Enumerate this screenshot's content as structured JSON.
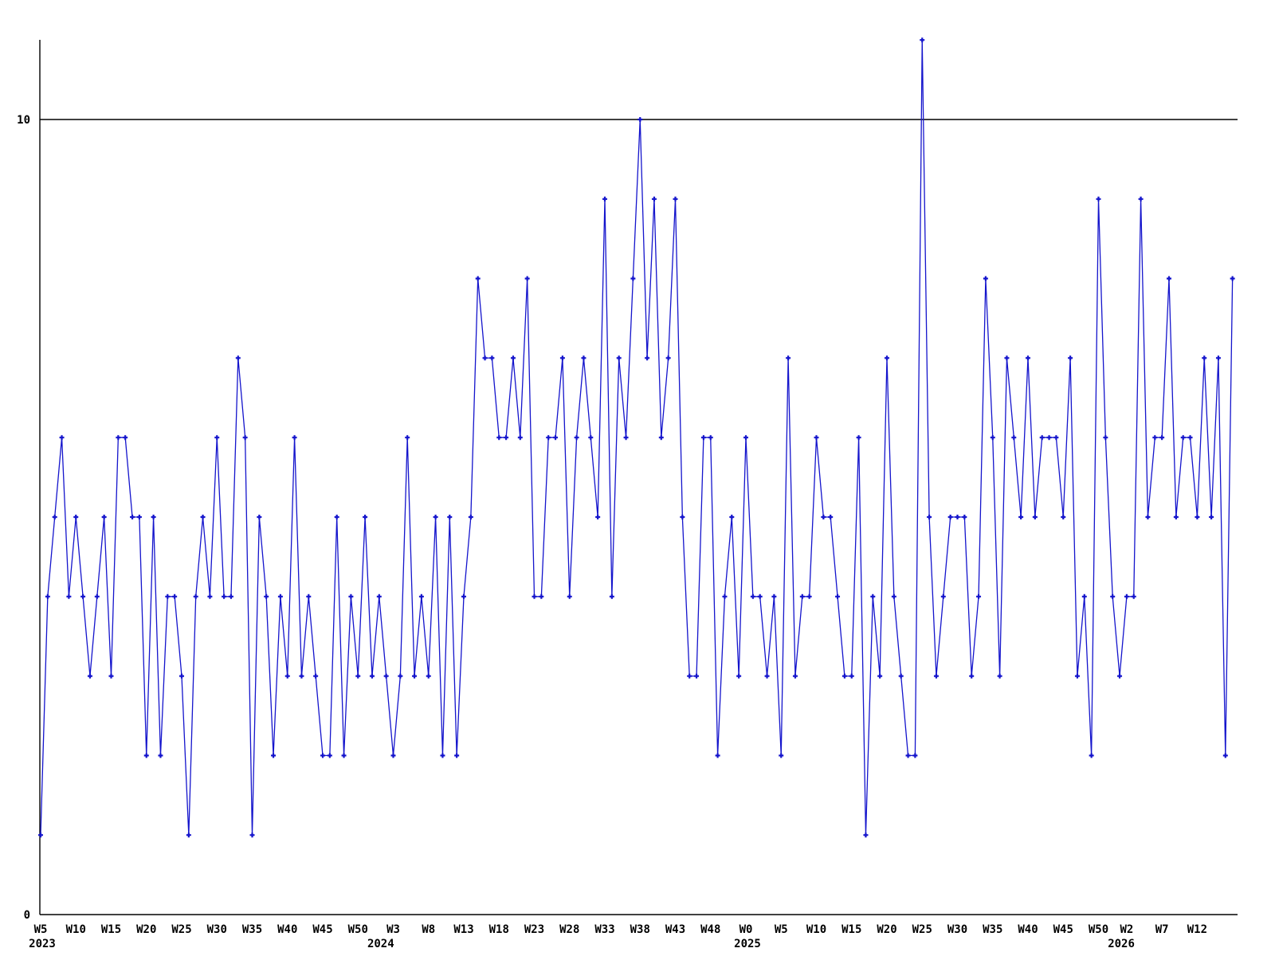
{
  "chart_data": {
    "type": "line",
    "title": "",
    "xlabel": "",
    "ylabel": "",
    "legend": "none",
    "grid": "none",
    "line_color": "#1414cc",
    "axis_color": "#000000",
    "background_color": "#ffffff",
    "marker": "plus",
    "ylim": [
      0,
      11.5
    ],
    "hline_value": 10,
    "y_ticks": [
      {
        "label": "0",
        "value": 0
      },
      {
        "label": "10",
        "value": 10
      }
    ],
    "x_start": {
      "year": "2023",
      "week": "W5"
    },
    "x_end": {
      "year": "2026",
      "week": "W17"
    },
    "values": [
      1,
      4,
      5,
      6,
      4,
      5,
      4,
      3,
      4,
      5,
      3,
      6,
      6,
      5,
      5,
      2,
      5,
      2,
      4,
      4,
      3,
      1,
      4,
      5,
      4,
      6,
      4,
      4,
      7,
      6,
      1,
      5,
      4,
      2,
      4,
      3,
      6,
      3,
      4,
      3,
      2,
      2,
      5,
      2,
      4,
      3,
      5,
      3,
      4,
      3,
      2,
      3,
      6,
      3,
      4,
      3,
      5,
      2,
      5,
      2,
      4,
      5,
      8,
      7,
      7,
      6,
      6,
      7,
      6,
      8,
      4,
      4,
      6,
      6,
      7,
      4,
      6,
      7,
      6,
      5,
      9,
      4,
      7,
      6,
      8,
      10,
      7,
      9,
      6,
      7,
      9,
      5,
      3,
      3,
      6,
      6,
      2,
      4,
      5,
      3,
      6,
      4,
      4,
      3,
      4,
      2,
      7,
      3,
      4,
      4,
      6,
      5,
      5,
      4,
      3,
      3,
      6,
      1,
      4,
      3,
      7,
      4,
      3,
      2,
      2,
      11,
      5,
      3,
      4,
      5,
      5,
      5,
      3,
      4,
      8,
      6,
      3,
      7,
      6,
      5,
      7,
      5,
      6,
      6,
      6,
      5,
      7,
      3,
      4,
      2,
      9,
      6,
      4,
      3,
      4,
      4,
      9,
      5,
      6,
      6,
      8,
      5,
      6,
      6,
      5,
      7,
      5,
      7,
      2,
      8
    ],
    "x_ticks": [
      {
        "label": "W5",
        "index": 0
      },
      {
        "label": "W10",
        "index": 5
      },
      {
        "label": "W15",
        "index": 10
      },
      {
        "label": "W20",
        "index": 15
      },
      {
        "label": "W25",
        "index": 20
      },
      {
        "label": "W30",
        "index": 25
      },
      {
        "label": "W35",
        "index": 30
      },
      {
        "label": "W40",
        "index": 35
      },
      {
        "label": "W45",
        "index": 40
      },
      {
        "label": "W50",
        "index": 45
      },
      {
        "label": "W3",
        "index": 50
      },
      {
        "label": "W8",
        "index": 55
      },
      {
        "label": "W13",
        "index": 60
      },
      {
        "label": "W18",
        "index": 65
      },
      {
        "label": "W23",
        "index": 70
      },
      {
        "label": "W28",
        "index": 75
      },
      {
        "label": "W33",
        "index": 80
      },
      {
        "label": "W38",
        "index": 85
      },
      {
        "label": "W43",
        "index": 90
      },
      {
        "label": "W48",
        "index": 95
      },
      {
        "label": "W0",
        "index": 100
      },
      {
        "label": "W5",
        "index": 105
      },
      {
        "label": "W10",
        "index": 110
      },
      {
        "label": "W15",
        "index": 115
      },
      {
        "label": "W20",
        "index": 120
      },
      {
        "label": "W25",
        "index": 125
      },
      {
        "label": "W30",
        "index": 130
      },
      {
        "label": "W35",
        "index": 135
      },
      {
        "label": "W40",
        "index": 140
      },
      {
        "label": "W45",
        "index": 145
      },
      {
        "label": "W50",
        "index": 150
      },
      {
        "label": "W2",
        "index": 154
      },
      {
        "label": "W7",
        "index": 159
      },
      {
        "label": "W12",
        "index": 164
      }
    ],
    "year_labels": [
      {
        "label": "2023",
        "index": 0
      },
      {
        "label": "2024",
        "index": 48
      },
      {
        "label": "2025",
        "index": 100
      },
      {
        "label": "2026",
        "index": 153
      }
    ]
  }
}
